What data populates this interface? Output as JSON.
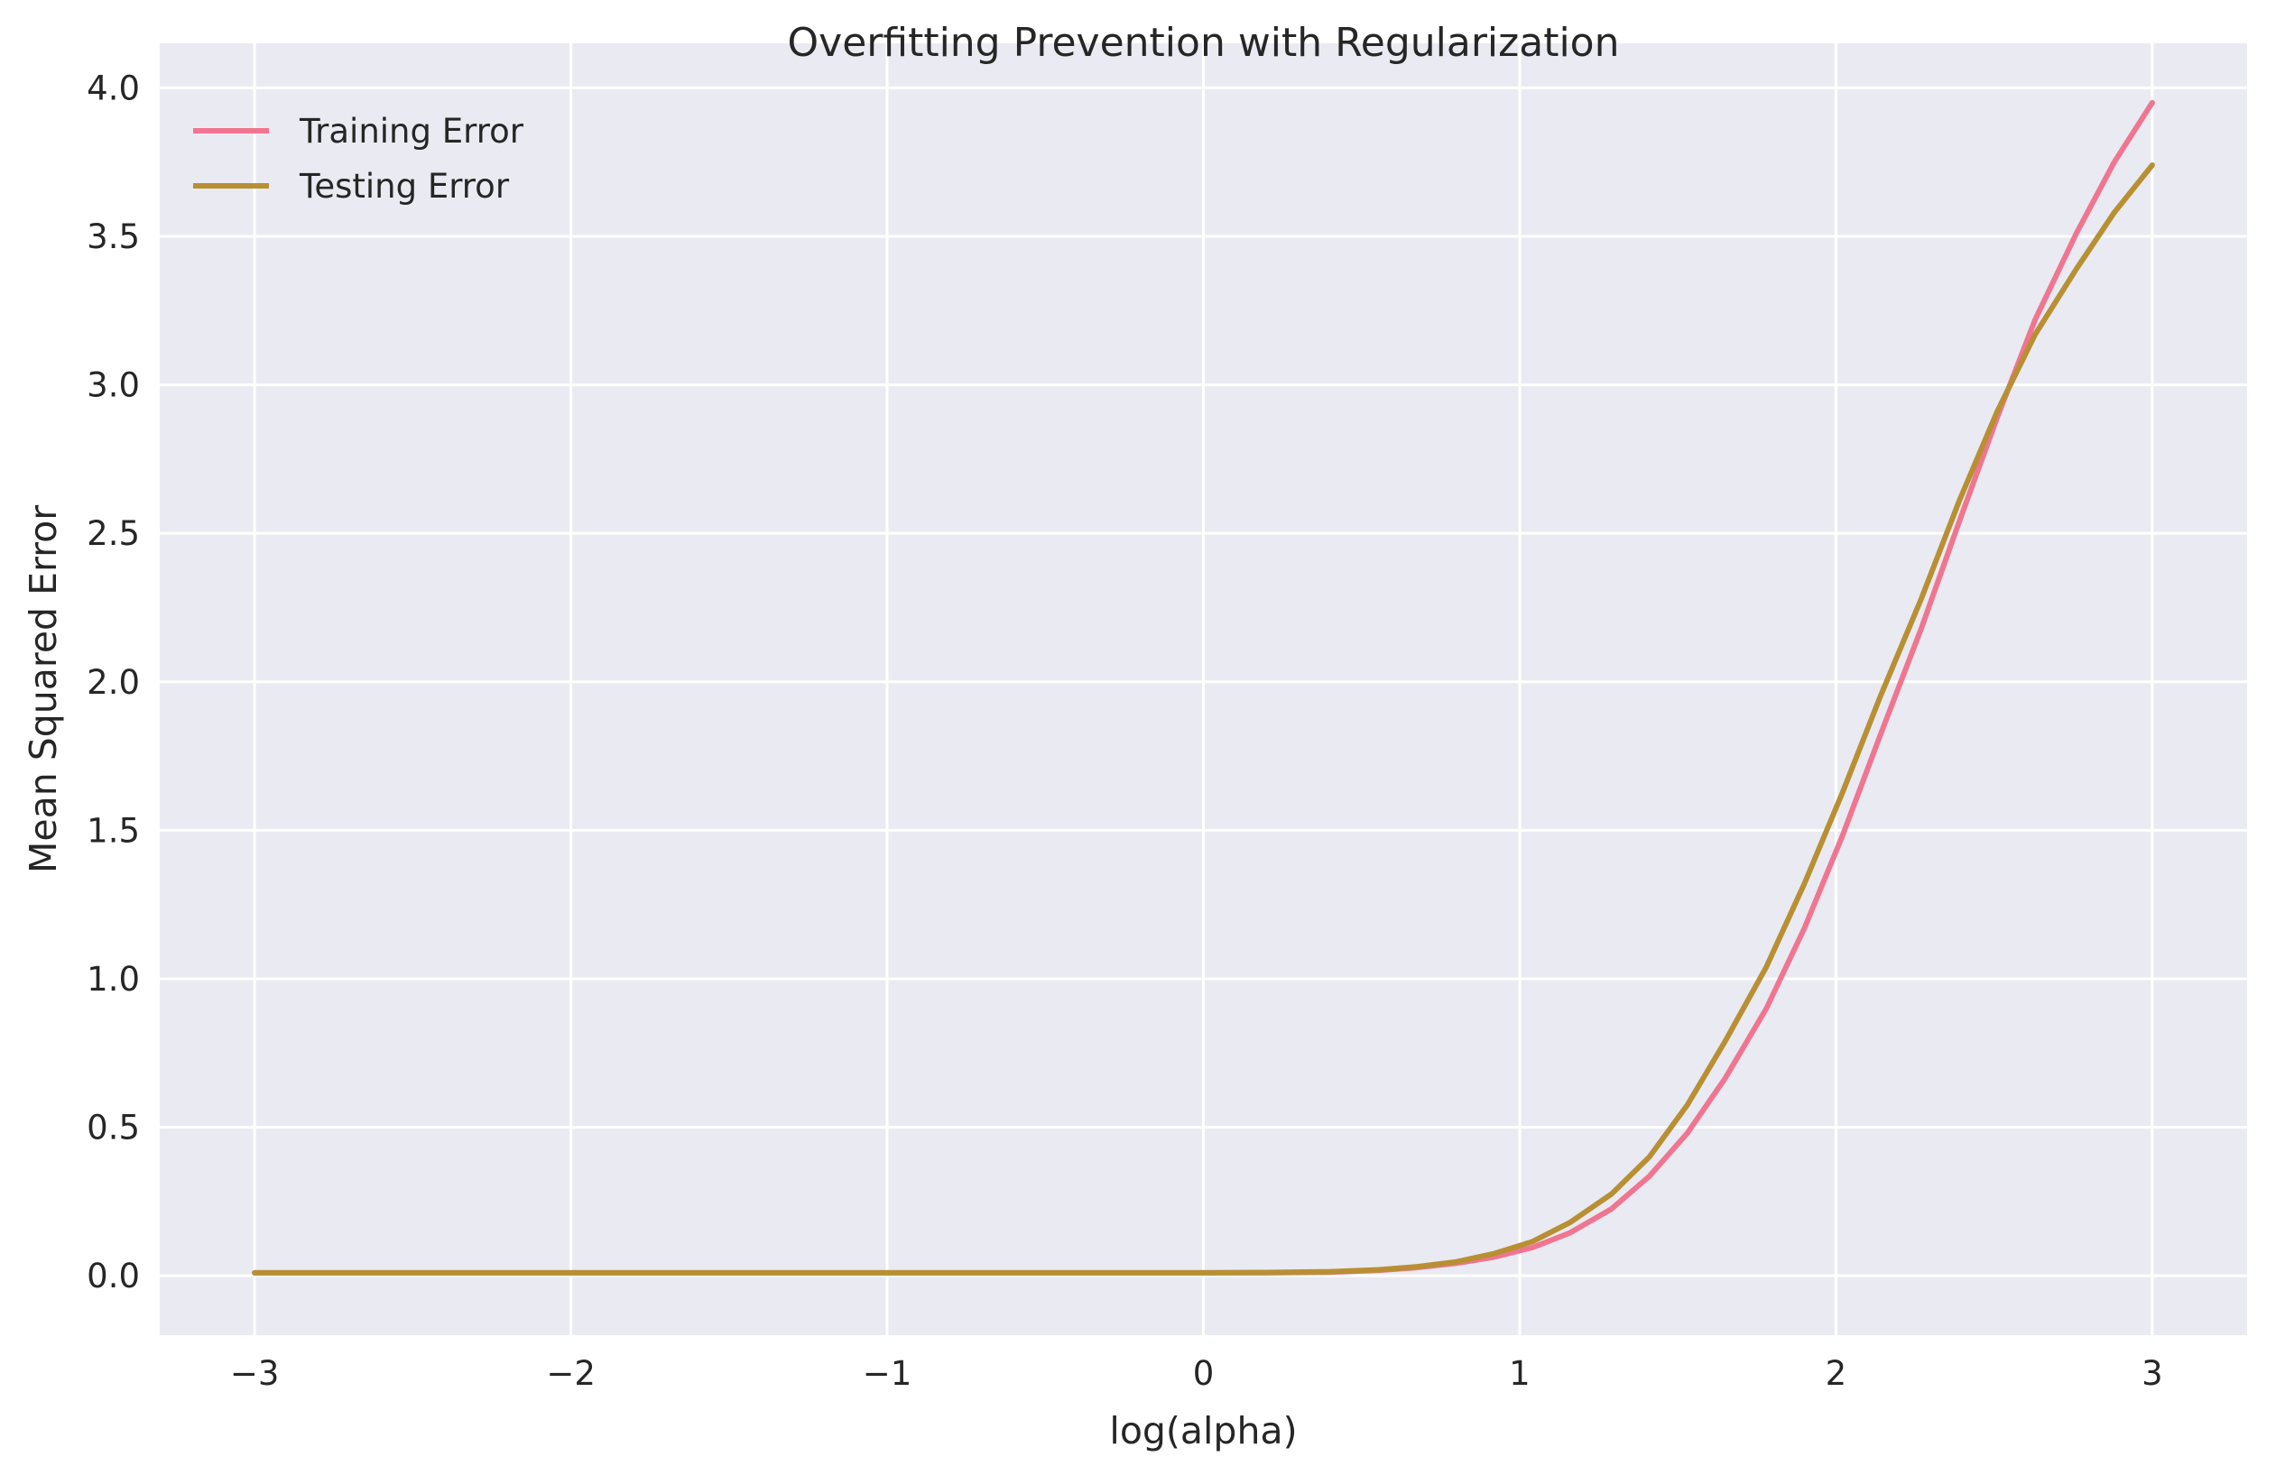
{
  "chart_data": {
    "type": "line",
    "title": "Overfitting Prevention with Regularization",
    "xlabel": "log(alpha)",
    "ylabel": "Mean Squared Error",
    "xlim": [
      -3.3,
      3.3
    ],
    "ylim": [
      -0.2,
      4.15
    ],
    "xticks": [
      -3,
      -2,
      -1,
      0,
      1,
      2,
      3
    ],
    "xtick_labels": [
      "−3",
      "−2",
      "−1",
      "0",
      "1",
      "2",
      "3"
    ],
    "yticks": [
      0.0,
      0.5,
      1.0,
      1.5,
      2.0,
      2.5,
      3.0,
      3.5,
      4.0
    ],
    "ytick_labels": [
      "0.0",
      "0.5",
      "1.0",
      "1.5",
      "2.0",
      "2.5",
      "3.0",
      "3.5",
      "4.0"
    ],
    "grid": true,
    "background": "#eaeaf2",
    "legend_position": "top-left",
    "x": [
      -3.0,
      -2.5,
      -2.0,
      -1.5,
      -1.0,
      -0.5,
      0.0,
      0.2,
      0.4,
      0.55,
      0.67,
      0.8,
      0.92,
      1.04,
      1.16,
      1.29,
      1.41,
      1.53,
      1.65,
      1.78,
      1.9,
      2.02,
      2.14,
      2.27,
      2.39,
      2.51,
      2.63,
      2.76,
      2.88,
      3.0
    ],
    "series": [
      {
        "name": "Training Error",
        "color": "#f07590",
        "values": [
          0.01,
          0.01,
          0.01,
          0.01,
          0.01,
          0.01,
          0.01,
          0.01,
          0.012,
          0.018,
          0.027,
          0.042,
          0.063,
          0.095,
          0.145,
          0.225,
          0.335,
          0.48,
          0.665,
          0.9,
          1.17,
          1.48,
          1.82,
          2.18,
          2.54,
          2.89,
          3.22,
          3.51,
          3.75,
          3.95
        ]
      },
      {
        "name": "Testing Error",
        "color": "#b89033",
        "values": [
          0.01,
          0.01,
          0.01,
          0.01,
          0.01,
          0.01,
          0.01,
          0.011,
          0.014,
          0.02,
          0.03,
          0.047,
          0.075,
          0.115,
          0.18,
          0.275,
          0.4,
          0.575,
          0.79,
          1.04,
          1.32,
          1.625,
          1.95,
          2.28,
          2.61,
          2.91,
          3.17,
          3.39,
          3.58,
          3.74
        ]
      }
    ]
  }
}
